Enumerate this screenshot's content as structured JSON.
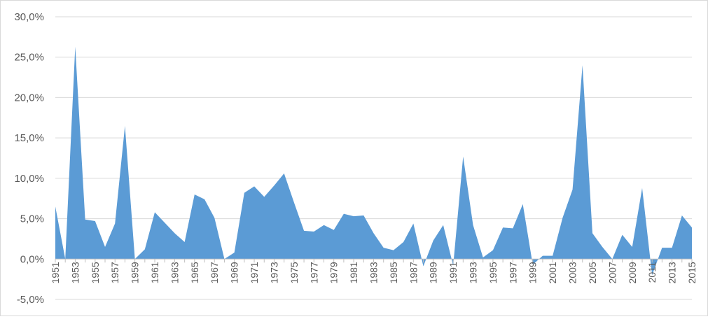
{
  "colors": {
    "area_fill": "#5b9bd5",
    "gridline": "#d9d9d9",
    "axis_line": "#bfbfbf",
    "tick_text": "#595959"
  },
  "chart_data": {
    "type": "area",
    "title": "",
    "xlabel": "",
    "ylabel": "",
    "ylim": [
      -5,
      30
    ],
    "grid": true,
    "legend": "none",
    "x": [
      1951,
      1952,
      1953,
      1954,
      1955,
      1956,
      1957,
      1958,
      1959,
      1960,
      1961,
      1962,
      1963,
      1964,
      1965,
      1966,
      1967,
      1968,
      1969,
      1970,
      1971,
      1972,
      1973,
      1974,
      1975,
      1976,
      1977,
      1978,
      1979,
      1980,
      1981,
      1982,
      1983,
      1984,
      1985,
      1986,
      1987,
      1988,
      1989,
      1990,
      1991,
      1992,
      1993,
      1994,
      1995,
      1996,
      1997,
      1998,
      1999,
      2000,
      2001,
      2002,
      2003,
      2004,
      2005,
      2006,
      2007,
      2008,
      2009,
      2010,
      2011,
      2012,
      2013,
      2014,
      2015
    ],
    "x_tick_labels": [
      "1951",
      "1953",
      "1955",
      "1957",
      "1959",
      "1961",
      "1963",
      "1965",
      "1967",
      "1969",
      "1971",
      "1973",
      "1975",
      "1977",
      "1979",
      "1981",
      "1983",
      "1985",
      "1987",
      "1989",
      "1991",
      "1993",
      "1995",
      "1997",
      "1999",
      "2001",
      "2003",
      "2005",
      "2007",
      "2009",
      "2011",
      "2013",
      "2015"
    ],
    "y_tick_labels": [
      "-5,0%",
      "0,0%",
      "5,0%",
      "10,0%",
      "15,0%",
      "20,0%",
      "25,0%",
      "30,0%"
    ],
    "y_tick_values": [
      -5,
      0,
      5,
      10,
      15,
      20,
      25,
      30
    ],
    "series": [
      {
        "values": [
          6.5,
          0.0,
          26.3,
          4.9,
          4.7,
          1.5,
          4.4,
          16.5,
          0.0,
          1.2,
          5.8,
          4.5,
          3.2,
          2.1,
          8.0,
          7.4,
          5.1,
          0.0,
          0.8,
          8.2,
          9.0,
          7.7,
          9.1,
          10.6,
          7.0,
          3.5,
          3.4,
          4.2,
          3.6,
          5.6,
          5.3,
          5.4,
          3.2,
          1.4,
          1.1,
          2.1,
          4.4,
          -0.9,
          2.3,
          4.2,
          -0.8,
          12.7,
          4.2,
          0.2,
          1.1,
          3.9,
          3.8,
          6.8,
          -0.7,
          0.4,
          0.4,
          5.1,
          8.6,
          24.0,
          3.2,
          1.5,
          0.0,
          3.0,
          1.5,
          8.8,
          -2.0,
          1.4,
          1.4,
          5.4,
          3.9
        ]
      }
    ]
  }
}
